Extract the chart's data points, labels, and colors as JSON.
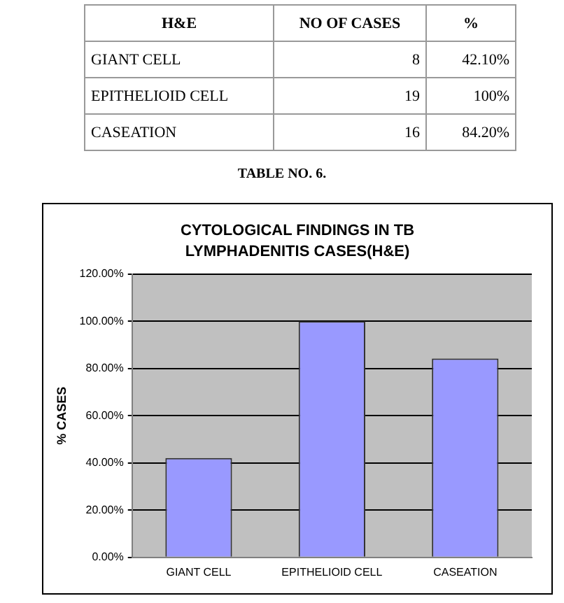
{
  "chart_data": {
    "type": "bar",
    "title": "CYTOLOGICAL FINDINGS IN TB LYMPHADENITIS CASES(H&E)",
    "ylabel": "% CASES",
    "categories": [
      "GIANT CELL",
      "EPITHELIOID CELL",
      "CASEATION"
    ],
    "values": [
      42.1,
      100,
      84.2
    ],
    "color": "#9999ff",
    "ylim": [
      0,
      120
    ],
    "yticks": [
      {
        "value": 0,
        "label": "0.00%"
      },
      {
        "value": 20,
        "label": "20.00%"
      },
      {
        "value": 40,
        "label": "40.00%"
      },
      {
        "value": 60,
        "label": "60.00%"
      },
      {
        "value": 80,
        "label": "80.00%"
      },
      {
        "value": 100,
        "label": "100.00%"
      },
      {
        "value": 120,
        "label": "120.00%"
      }
    ],
    "grid": "y",
    "annotations": [
      "H&E",
      "NO OF CASES",
      "%",
      "8",
      "19",
      "16",
      "42.10%",
      "100%",
      "84.20%",
      "TABLE NO. 6."
    ]
  }
}
